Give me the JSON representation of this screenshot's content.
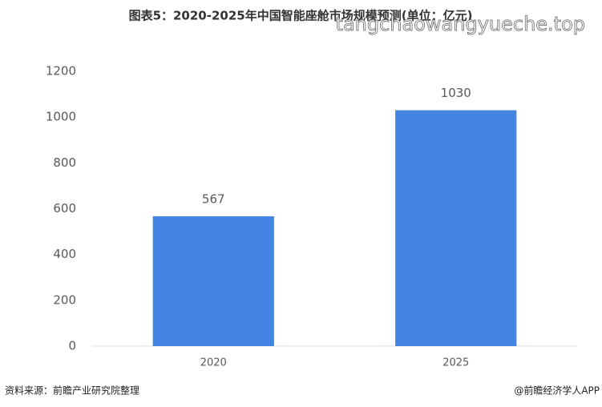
{
  "chart_data": {
    "type": "bar",
    "title": "图表5：2020-2025年中国智能座舱市场规模预测(单位：亿元)",
    "categories": [
      "2020",
      "2025"
    ],
    "values": [
      567,
      1030
    ],
    "color": "#4285e2",
    "ylim": [
      0,
      1200
    ],
    "yticks": [
      0,
      200,
      400,
      600,
      800,
      1000,
      1200
    ],
    "grid": false,
    "source": "资料来源：前瞻产业研究院整理",
    "credit": "@前瞻经济学人APP",
    "watermark": "tangchaowangyueche.top"
  }
}
